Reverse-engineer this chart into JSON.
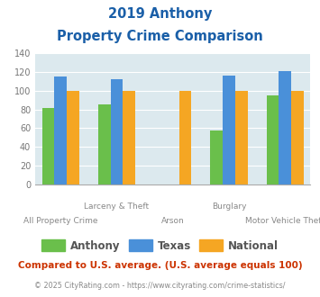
{
  "title_line1": "2019 Anthony",
  "title_line2": "Property Crime Comparison",
  "categories": [
    "All Property Crime",
    "Larceny & Theft",
    "Arson",
    "Burglary",
    "Motor Vehicle Theft"
  ],
  "x_labels_top": [
    "",
    "Larceny & Theft",
    "",
    "Burglary",
    ""
  ],
  "x_labels_bottom": [
    "All Property Crime",
    "",
    "Arson",
    "",
    "Motor Vehicle Theft"
  ],
  "anthony_values": [
    82,
    85,
    0,
    57,
    95
  ],
  "texas_values": [
    115,
    112,
    0,
    116,
    121
  ],
  "national_values": [
    100,
    100,
    100,
    100,
    100
  ],
  "anthony_color": "#6abf4b",
  "texas_color": "#4a90d9",
  "national_color": "#f5a623",
  "bg_color": "#dce9ee",
  "ylim": [
    0,
    140
  ],
  "yticks": [
    0,
    20,
    40,
    60,
    80,
    100,
    120,
    140
  ],
  "legend_labels": [
    "Anthony",
    "Texas",
    "National"
  ],
  "footer_text": "Compared to U.S. average. (U.S. average equals 100)",
  "copyright_text": "© 2025 CityRating.com - https://www.cityrating.com/crime-statistics/",
  "title_color": "#1a5fa8",
  "footer_color": "#cc3300",
  "copyright_color": "#888888",
  "legend_label_color": "#555555",
  "tick_label_color": "#777777",
  "grid_color": "#ffffff",
  "spine_color": "#aaaaaa"
}
